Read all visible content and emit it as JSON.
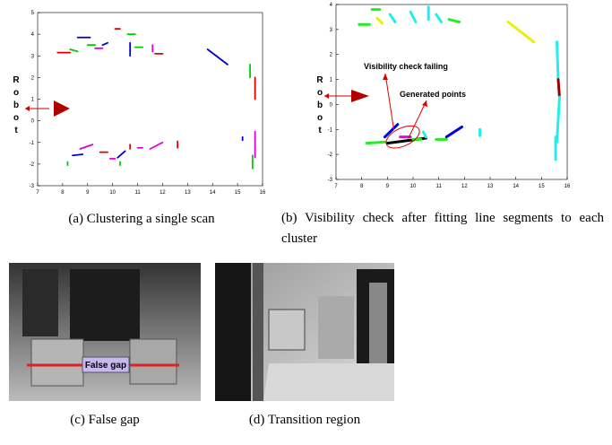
{
  "figures": [
    {
      "caption": "(a) Clustering a single scan",
      "xlim": [
        7,
        16
      ],
      "ylim": [
        -3,
        5
      ],
      "xticks": [
        7,
        8,
        9,
        10,
        11,
        12,
        13,
        14,
        15,
        16
      ],
      "yticks": [
        -3,
        -2,
        -1,
        0,
        1,
        2,
        3,
        4,
        5
      ],
      "robot_label": [
        "R",
        "o",
        "b",
        "o",
        "t"
      ],
      "segments": [
        {
          "color": "#d00",
          "x": [
            7.8,
            8.3
          ],
          "y": [
            3.15,
            3.15
          ]
        },
        {
          "color": "#0c0",
          "x": [
            8.3,
            8.6
          ],
          "y": [
            3.3,
            3.2
          ]
        },
        {
          "color": "#00c",
          "x": [
            8.6,
            9.1
          ],
          "y": [
            3.85,
            3.85
          ]
        },
        {
          "color": "#0c0",
          "x": [
            9.0,
            9.3
          ],
          "y": [
            3.5,
            3.5
          ]
        },
        {
          "color": "#d0d",
          "x": [
            9.3,
            9.6
          ],
          "y": [
            3.35,
            3.35
          ]
        },
        {
          "color": "#00c",
          "x": [
            9.6,
            9.8
          ],
          "y": [
            3.5,
            3.6
          ]
        },
        {
          "color": "#d00",
          "x": [
            10.1,
            10.3
          ],
          "y": [
            4.25,
            4.25
          ]
        },
        {
          "color": "#0c0",
          "x": [
            10.6,
            10.9
          ],
          "y": [
            4.0,
            4.0
          ]
        },
        {
          "color": "#00c",
          "x": [
            10.7,
            10.7
          ],
          "y": [
            3.6,
            3.0
          ]
        },
        {
          "color": "#0c0",
          "x": [
            10.9,
            11.2
          ],
          "y": [
            3.4,
            3.4
          ]
        },
        {
          "color": "#d0d",
          "x": [
            11.6,
            11.6
          ],
          "y": [
            3.5,
            3.2
          ]
        },
        {
          "color": "#d00",
          "x": [
            11.7,
            12.0
          ],
          "y": [
            3.1,
            3.1
          ]
        },
        {
          "color": "#00c",
          "x": [
            13.8,
            14.6
          ],
          "y": [
            3.3,
            2.6
          ]
        },
        {
          "color": "#0c0",
          "x": [
            15.5,
            15.5
          ],
          "y": [
            2.6,
            2.0
          ]
        },
        {
          "color": "#d00",
          "x": [
            15.7,
            15.7
          ],
          "y": [
            2.0,
            1.0
          ]
        },
        {
          "color": "#d0d",
          "x": [
            15.7,
            15.7
          ],
          "y": [
            -0.5,
            -1.7
          ]
        },
        {
          "color": "#0c0",
          "x": [
            15.6,
            15.6
          ],
          "y": [
            -1.6,
            -2.2
          ]
        },
        {
          "color": "#00c",
          "x": [
            15.2,
            15.2
          ],
          "y": [
            -0.75,
            -0.9
          ]
        },
        {
          "color": "#0c0",
          "x": [
            8.2,
            8.2
          ],
          "y": [
            -1.9,
            -2.05
          ]
        },
        {
          "color": "#00c",
          "x": [
            8.4,
            8.8
          ],
          "y": [
            -1.6,
            -1.55
          ]
        },
        {
          "color": "#d0d",
          "x": [
            8.7,
            9.2
          ],
          "y": [
            -1.3,
            -1.1
          ]
        },
        {
          "color": "#d00",
          "x": [
            9.5,
            9.8
          ],
          "y": [
            -1.45,
            -1.45
          ]
        },
        {
          "color": "#d0d",
          "x": [
            9.9,
            10.1
          ],
          "y": [
            -1.75,
            -1.75
          ]
        },
        {
          "color": "#00c",
          "x": [
            10.2,
            10.5
          ],
          "y": [
            -1.7,
            -1.4
          ]
        },
        {
          "color": "#0c0",
          "x": [
            10.3,
            10.3
          ],
          "y": [
            -1.9,
            -2.05
          ]
        },
        {
          "color": "#d00",
          "x": [
            10.7,
            10.7
          ],
          "y": [
            -1.1,
            -1.3
          ]
        },
        {
          "color": "#d0d",
          "x": [
            11.0,
            11.2
          ],
          "y": [
            -1.25,
            -1.25
          ]
        },
        {
          "color": "#d0d",
          "x": [
            11.5,
            12.0
          ],
          "y": [
            -1.3,
            -1.0
          ]
        },
        {
          "color": "#d00",
          "x": [
            12.6,
            12.6
          ],
          "y": [
            -0.95,
            -1.25
          ]
        }
      ]
    },
    {
      "caption": "(b) Visibility check after fitting line segments to each cluster",
      "xlim": [
        7,
        16
      ],
      "ylim": [
        -3,
        4
      ],
      "xticks": [
        7,
        8,
        9,
        10,
        11,
        12,
        13,
        14,
        15,
        16
      ],
      "yticks": [
        -3,
        -2,
        -1,
        0,
        1,
        2,
        3,
        4
      ],
      "robot_label": [
        "R",
        "o",
        "b",
        "o",
        "t"
      ],
      "annotations": [
        "Visibility check failing",
        "Generated points"
      ],
      "segments": [
        {
          "color": "#2e2",
          "x": [
            7.9,
            8.3
          ],
          "y": [
            3.2,
            3.2
          ]
        },
        {
          "color": "#2e2",
          "x": [
            8.4,
            8.7
          ],
          "y": [
            3.8,
            3.8
          ]
        },
        {
          "color": "#ee0",
          "x": [
            8.6,
            8.8
          ],
          "y": [
            3.45,
            3.25
          ]
        },
        {
          "color": "#2ee",
          "x": [
            9.1,
            9.3
          ],
          "y": [
            3.6,
            3.3
          ]
        },
        {
          "color": "#2ee",
          "x": [
            9.9,
            10.1
          ],
          "y": [
            3.7,
            3.3
          ]
        },
        {
          "color": "#2ee",
          "x": [
            10.6,
            10.6
          ],
          "y": [
            3.9,
            3.4
          ]
        },
        {
          "color": "#2ee",
          "x": [
            10.9,
            11.1
          ],
          "y": [
            3.6,
            3.3
          ]
        },
        {
          "color": "#2e2",
          "x": [
            11.4,
            11.8
          ],
          "y": [
            3.4,
            3.3
          ]
        },
        {
          "color": "#ee0",
          "x": [
            13.7,
            14.7
          ],
          "y": [
            3.3,
            2.5
          ]
        },
        {
          "color": "#2ee",
          "x": [
            15.6,
            15.65
          ],
          "y": [
            2.5,
            1.0
          ]
        },
        {
          "color": "#900",
          "x": [
            15.65,
            15.7
          ],
          "y": [
            1.0,
            0.3
          ]
        },
        {
          "color": "#2ee",
          "x": [
            15.7,
            15.6
          ],
          "y": [
            0.3,
            -1.5
          ]
        },
        {
          "color": "#2ee",
          "x": [
            15.55,
            15.55
          ],
          "y": [
            -1.3,
            -2.2
          ]
        },
        {
          "color": "#2e2",
          "x": [
            8.2,
            8.9
          ],
          "y": [
            -1.55,
            -1.5
          ]
        },
        {
          "color": "#00d",
          "x": [
            8.9,
            9.4
          ],
          "y": [
            -1.3,
            -0.8
          ]
        },
        {
          "color": "#e0e",
          "x": [
            9.5,
            9.9
          ],
          "y": [
            -1.3,
            -1.3
          ]
        },
        {
          "color": "#000",
          "x": [
            9.0,
            10.5
          ],
          "y": [
            -1.55,
            -1.35
          ]
        },
        {
          "color": "#2e2",
          "x": [
            10.0,
            10.3
          ],
          "y": [
            -1.4,
            -1.4
          ]
        },
        {
          "color": "#2ee",
          "x": [
            10.4,
            10.5
          ],
          "y": [
            -1.1,
            -1.3
          ]
        },
        {
          "color": "#2e2",
          "x": [
            10.9,
            11.3
          ],
          "y": [
            -1.4,
            -1.4
          ]
        },
        {
          "color": "#00d",
          "x": [
            11.3,
            11.9
          ],
          "y": [
            -1.3,
            -0.9
          ]
        },
        {
          "color": "#2ee",
          "x": [
            12.6,
            12.6
          ],
          "y": [
            -1.0,
            -1.25
          ]
        }
      ]
    },
    {
      "caption": "(c) False gap",
      "label": "False gap"
    },
    {
      "caption": "(d) Transition region"
    }
  ]
}
